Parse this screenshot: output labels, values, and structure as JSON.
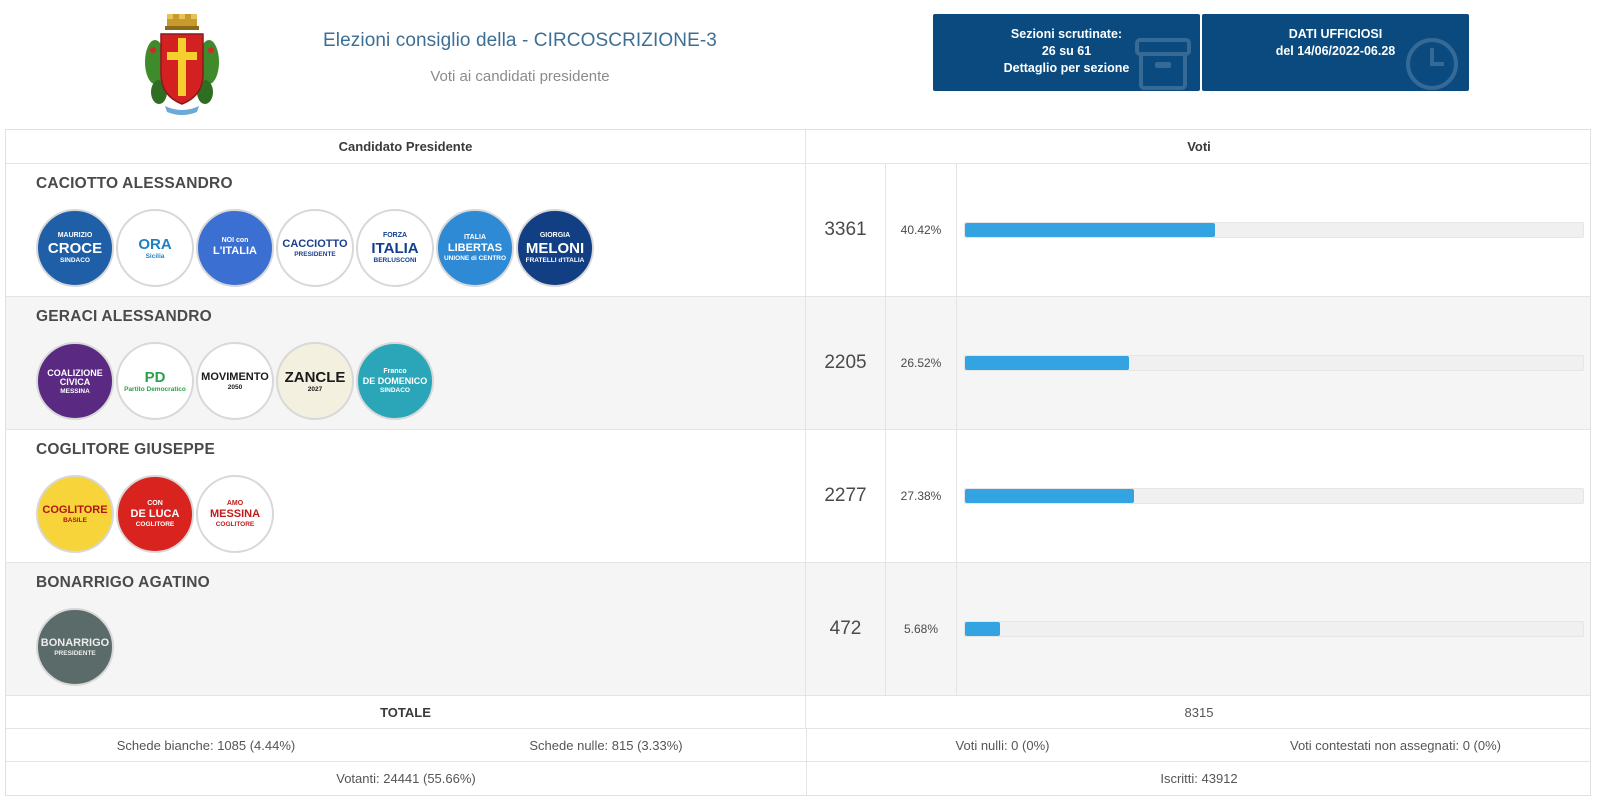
{
  "header": {
    "title": "Elezioni consiglio della - CIRCOSCRIZIONE-3",
    "subtitle": "Voti ai candidati presidente",
    "crest_icon": "messina-coat-of-arms-icon"
  },
  "info_boxes": {
    "sezioni": {
      "line1": "Sezioni scrutinate:",
      "line2": "26 su 61",
      "line3": "Dettaglio per sezione"
    },
    "dati": {
      "line1": "DATI UFFICIOSI",
      "line2": "del 14/06/2022-06.28"
    }
  },
  "table": {
    "col_candidate": "Candidato Presidente",
    "col_votes": "Voti"
  },
  "candidates": [
    {
      "name": "CACIOTTO ALESSANDRO",
      "votes": "3361",
      "percent_label": "40.42%",
      "percent": 40.42,
      "logos": [
        {
          "top": "MAURIZIO",
          "main": "CROCE",
          "bottom": "SINDACO",
          "bg": "#1e5fa8",
          "fg": "#ffffff"
        },
        {
          "top": "",
          "main": "ORA",
          "bottom": "Sicilia",
          "bg": "#ffffff",
          "fg": "#1f7fc4"
        },
        {
          "top": "NOI con",
          "main": "L'ITALIA",
          "bottom": "",
          "bg": "#3b6fd1",
          "fg": "#ffffff"
        },
        {
          "top": "",
          "main": "CACCIOTTO",
          "bottom": "PRESIDENTE",
          "bg": "#ffffff",
          "fg": "#1b3f8c"
        },
        {
          "top": "FORZA",
          "main": "ITALIA",
          "bottom": "BERLUSCONI",
          "bg": "#ffffff",
          "fg": "#0f3f8f"
        },
        {
          "top": "ITALIA",
          "main": "LIBERTAS",
          "bottom": "UNIONE di CENTRO",
          "bg": "#2f8ad6",
          "fg": "#ffffff"
        },
        {
          "top": "GIORGIA",
          "main": "MELONI",
          "bottom": "FRATELLI d'ITALIA",
          "bg": "#123f83",
          "fg": "#ffffff"
        }
      ]
    },
    {
      "name": "GERACI ALESSANDRO",
      "votes": "2205",
      "percent_label": "26.52%",
      "percent": 26.52,
      "logos": [
        {
          "top": "",
          "main": "COALIZIONE CIVICA",
          "bottom": "MESSINA",
          "bg": "#5a2a82",
          "fg": "#ffffff"
        },
        {
          "top": "",
          "main": "PD",
          "bottom": "Partito Democratico",
          "bg": "#ffffff",
          "fg": "#2aa14a"
        },
        {
          "top": "",
          "main": "MOVIMENTO",
          "bottom": "2050",
          "bg": "#ffffff",
          "fg": "#1a1a1a"
        },
        {
          "top": "",
          "main": "ZANCLE",
          "bottom": "2027",
          "bg": "#f3f0e0",
          "fg": "#1a1a1a"
        },
        {
          "top": "Franco",
          "main": "DE DOMENICO",
          "bottom": "SINDACO",
          "bg": "#2ba6b8",
          "fg": "#ffffff"
        }
      ]
    },
    {
      "name": "COGLITORE GIUSEPPE",
      "votes": "2277",
      "percent_label": "27.38%",
      "percent": 27.38,
      "logos": [
        {
          "top": "",
          "main": "COGLITORE",
          "bottom": "BASILE",
          "bg": "#f6d43a",
          "fg": "#b31414"
        },
        {
          "top": "CON",
          "main": "DE LUCA",
          "bottom": "COGLITORE",
          "bg": "#d8231f",
          "fg": "#ffffff"
        },
        {
          "top": "AMO",
          "main": "MESSINA",
          "bottom": "COGLITORE",
          "bg": "#ffffff",
          "fg": "#c01b1b"
        }
      ]
    },
    {
      "name": "BONARRIGO AGATINO",
      "votes": "472",
      "percent_label": "5.68%",
      "percent": 5.68,
      "logos": [
        {
          "top": "",
          "main": "BONARRIGO",
          "bottom": "PRESIDENTE",
          "bg": "#5b6b6a",
          "fg": "#ececec"
        }
      ]
    }
  ],
  "totals": {
    "label": "TOTALE",
    "value": "8315"
  },
  "stats": {
    "schede_bianche": "Schede bianche: 1085 (4.44%)",
    "schede_nulle": "Schede nulle: 815 (3.33%)",
    "voti_nulli": "Voti nulli: 0 (0%)",
    "voti_contestati": "Voti contestati non assegnati: 0 (0%)",
    "votanti": "Votanti: 24441 (55.66%)",
    "iscritti": "Iscritti: 43912"
  }
}
